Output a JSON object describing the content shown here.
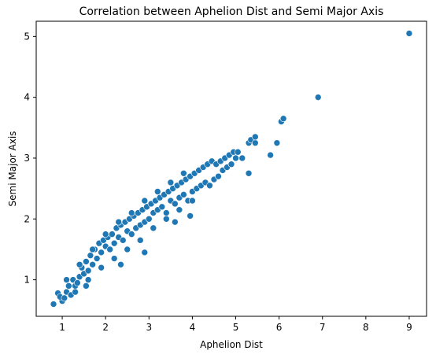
{
  "chart_data": {
    "type": "scatter",
    "title": "Correlation between Aphelion Dist and Semi Major Axis",
    "xlabel": "Aphelion Dist",
    "ylabel": "Semi Major Axis",
    "xlim": [
      0.4,
      9.4
    ],
    "ylim": [
      0.4,
      5.25
    ],
    "xticks": [
      1,
      2,
      3,
      4,
      5,
      6,
      7,
      8,
      9
    ],
    "yticks": [
      1,
      2,
      3,
      4,
      5
    ],
    "grid": false,
    "series": [
      {
        "color": "#1f77b4",
        "points": [
          [
            0.8,
            0.6
          ],
          [
            0.9,
            0.78
          ],
          [
            1.0,
            0.65
          ],
          [
            0.95,
            0.72
          ],
          [
            1.05,
            0.7
          ],
          [
            1.1,
            0.8
          ],
          [
            1.2,
            0.75
          ],
          [
            1.15,
            0.9
          ],
          [
            1.3,
            0.9
          ],
          [
            1.25,
            1.0
          ],
          [
            1.4,
            1.05
          ],
          [
            1.35,
            0.95
          ],
          [
            1.5,
            1.1
          ],
          [
            1.45,
            1.2
          ],
          [
            1.6,
            1.15
          ],
          [
            1.55,
            1.3
          ],
          [
            1.7,
            1.25
          ],
          [
            1.65,
            1.4
          ],
          [
            1.8,
            1.35
          ],
          [
            1.75,
            1.5
          ],
          [
            1.9,
            1.45
          ],
          [
            1.85,
            1.6
          ],
          [
            2.0,
            1.55
          ],
          [
            1.95,
            1.65
          ],
          [
            2.1,
            1.5
          ],
          [
            2.05,
            1.7
          ],
          [
            2.2,
            1.6
          ],
          [
            2.15,
            1.75
          ],
          [
            2.3,
            1.7
          ],
          [
            2.25,
            1.85
          ],
          [
            2.4,
            1.65
          ],
          [
            2.35,
            1.9
          ],
          [
            2.5,
            1.8
          ],
          [
            2.45,
            1.95
          ],
          [
            2.6,
            1.75
          ],
          [
            2.55,
            2.0
          ],
          [
            2.7,
            1.85
          ],
          [
            2.65,
            2.05
          ],
          [
            2.8,
            1.9
          ],
          [
            2.75,
            2.1
          ],
          [
            2.9,
            1.95
          ],
          [
            2.85,
            2.15
          ],
          [
            3.0,
            2.0
          ],
          [
            2.95,
            2.2
          ],
          [
            3.1,
            2.1
          ],
          [
            3.05,
            2.25
          ],
          [
            3.2,
            2.15
          ],
          [
            3.15,
            2.3
          ],
          [
            3.3,
            2.2
          ],
          [
            3.25,
            2.35
          ],
          [
            3.4,
            2.1
          ],
          [
            3.35,
            2.4
          ],
          [
            3.5,
            2.3
          ],
          [
            3.45,
            2.45
          ],
          [
            3.6,
            2.25
          ],
          [
            3.55,
            2.5
          ],
          [
            3.7,
            2.35
          ],
          [
            3.65,
            2.55
          ],
          [
            3.8,
            2.4
          ],
          [
            3.75,
            2.6
          ],
          [
            3.9,
            2.3
          ],
          [
            3.85,
            2.65
          ],
          [
            4.0,
            2.45
          ],
          [
            3.95,
            2.7
          ],
          [
            4.1,
            2.5
          ],
          [
            4.05,
            2.75
          ],
          [
            4.2,
            2.55
          ],
          [
            4.15,
            2.8
          ],
          [
            4.3,
            2.6
          ],
          [
            4.25,
            2.85
          ],
          [
            4.4,
            2.55
          ],
          [
            4.35,
            2.9
          ],
          [
            4.5,
            2.65
          ],
          [
            4.45,
            2.95
          ],
          [
            4.6,
            2.7
          ],
          [
            4.55,
            2.9
          ],
          [
            4.7,
            2.8
          ],
          [
            4.65,
            2.95
          ],
          [
            4.8,
            2.85
          ],
          [
            4.75,
            3.0
          ],
          [
            4.9,
            2.9
          ],
          [
            4.85,
            3.05
          ],
          [
            5.0,
            3.0
          ],
          [
            4.95,
            3.1
          ],
          [
            1.3,
            0.8
          ],
          [
            1.6,
            1.0
          ],
          [
            1.9,
            1.2
          ],
          [
            2.2,
            1.35
          ],
          [
            2.5,
            1.5
          ],
          [
            2.8,
            1.65
          ],
          [
            3.1,
            1.85
          ],
          [
            3.4,
            2.0
          ],
          [
            3.7,
            2.15
          ],
          [
            4.0,
            2.3
          ],
          [
            1.1,
            1.0
          ],
          [
            1.4,
            1.25
          ],
          [
            1.7,
            1.5
          ],
          [
            2.0,
            1.75
          ],
          [
            2.3,
            1.95
          ],
          [
            2.6,
            2.1
          ],
          [
            2.9,
            2.3
          ],
          [
            3.2,
            2.45
          ],
          [
            3.5,
            2.6
          ],
          [
            3.8,
            2.75
          ],
          [
            2.9,
            1.45
          ],
          [
            3.6,
            1.95
          ],
          [
            3.95,
            2.05
          ],
          [
            2.35,
            1.25
          ],
          [
            1.55,
            0.9
          ],
          [
            5.3,
            2.75
          ],
          [
            5.3,
            3.25
          ],
          [
            5.35,
            3.3
          ],
          [
            5.45,
            3.25
          ],
          [
            5.45,
            3.35
          ],
          [
            5.15,
            3.0
          ],
          [
            5.05,
            3.1
          ],
          [
            5.8,
            3.05
          ],
          [
            5.95,
            3.25
          ],
          [
            6.05,
            3.6
          ],
          [
            6.1,
            3.65
          ],
          [
            6.9,
            4.0
          ],
          [
            9.0,
            5.05
          ]
        ]
      }
    ]
  }
}
